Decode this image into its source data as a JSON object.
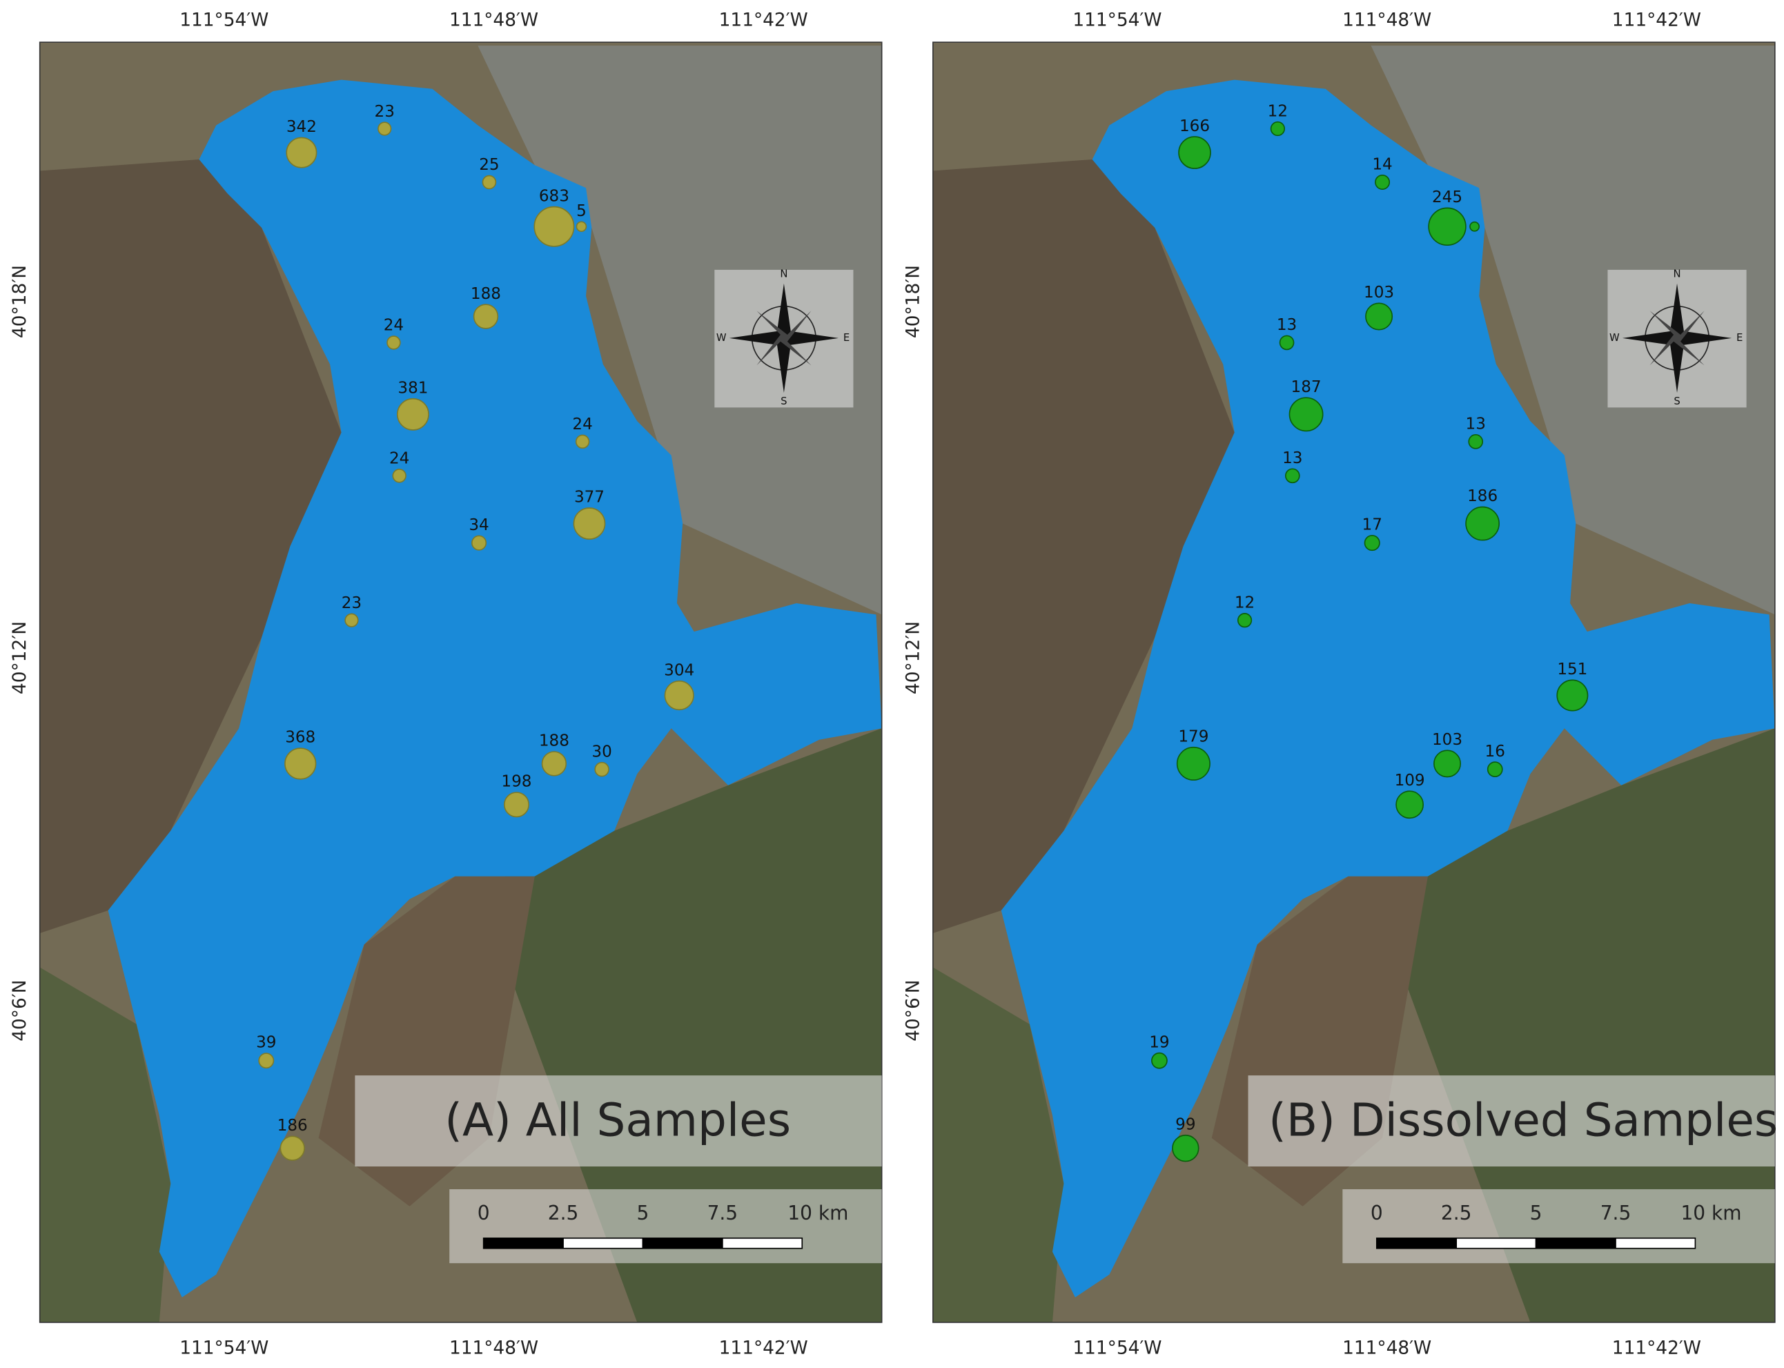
{
  "panels": [
    {
      "title": "(A) All Samples",
      "lon_labels": [
        "111°54′W",
        "111°48′W",
        "111°42′W"
      ],
      "lat_labels": [
        "40°18′N",
        "40°12′N",
        "40°6′N"
      ],
      "color": "#aba43c",
      "values": [
        342,
        23,
        25,
        683,
        5,
        188,
        24,
        381,
        24,
        24,
        377,
        34,
        23,
        304,
        368,
        188,
        30,
        198,
        39,
        186
      ]
    },
    {
      "title": "(B) Dissolved Samples",
      "lon_labels": [
        "111°54′W",
        "111°48′W",
        "111°42′W"
      ],
      "lat_labels": [
        "40°18′N",
        "40°12′N",
        "40°6′N"
      ],
      "color": "#1fa81f",
      "values": [
        166,
        12,
        14,
        245,
        null,
        103,
        13,
        187,
        13,
        13,
        186,
        17,
        12,
        151,
        179,
        103,
        16,
        109,
        19,
        99
      ]
    }
  ],
  "scale_bar": {
    "labels": [
      "0",
      "2.5",
      "5",
      "7.5",
      "10 km"
    ]
  },
  "compass": {
    "labels": [
      "N",
      "E",
      "S",
      "W"
    ]
  }
}
